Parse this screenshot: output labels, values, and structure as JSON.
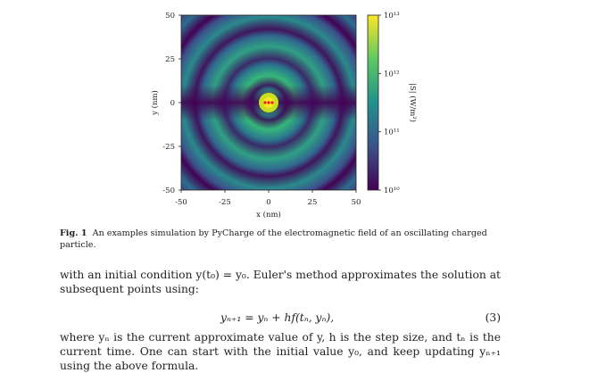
{
  "figure": {
    "x_ticks": [
      "-50",
      "-25",
      "0",
      "25",
      "50"
    ],
    "y_ticks": [
      "50",
      "25",
      "0",
      "-25",
      "-50"
    ],
    "x_label": "x (nm)",
    "y_label": "y (nm)",
    "colorbar_ticks": [
      "10¹³",
      "10¹²",
      "10¹¹",
      "10¹⁰"
    ],
    "colorbar_label": "|S| (W/m²)"
  },
  "caption": {
    "label": "Fig. 1",
    "text": "An examples simulation by PyCharge of the electromagnetic field of an oscillating charged particle."
  },
  "paragraph_1": "with an initial condition y(t₀) = y₀. Euler's method approximates the solution at subsequent points using:",
  "equation": {
    "text": "yₙ₊₁ = yₙ + hf(tₙ, yₙ),",
    "number": "(3)"
  },
  "paragraph_2": "where yₙ is the current approximate value of y, h is the step size, and tₙ is the current time. One can start with the initial value y₀, and keep updating yₙ₊₁ using the above formula."
}
